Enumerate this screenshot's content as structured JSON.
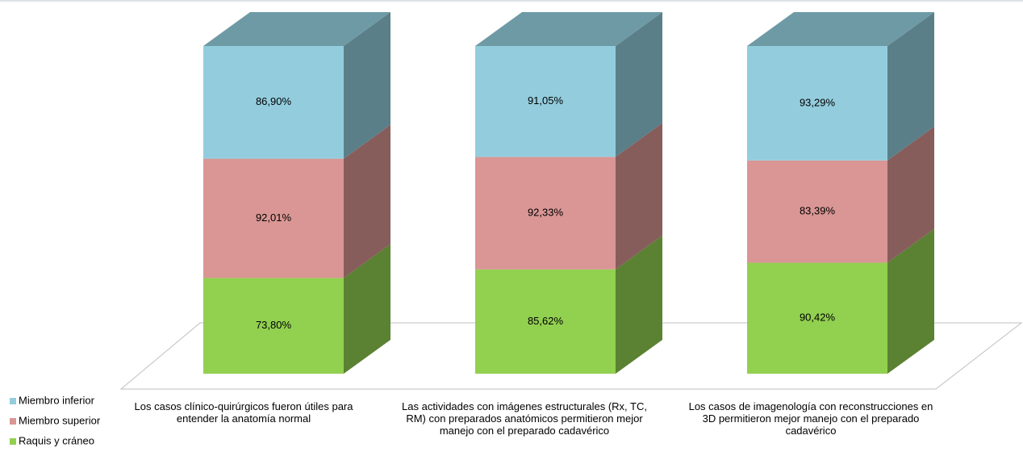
{
  "chart_data": {
    "type": "bar",
    "stacking": "percent",
    "three_d": true,
    "legend": "bottom-left",
    "categories": [
      "Los casos clínico-quirúrgicos fueron útiles para entender  la anatomía normal",
      "Las actividades con imágenes estructurales (Rx, TC, RM) con preparados anatómicos permitieron mejor manejo  con el preparado cadavérico",
      "Los casos de imagenología con reconstrucciones en 3D permitieron mejor manejo con el preparado cadavérico"
    ],
    "series": [
      {
        "name": "Miembro inferior",
        "color": "#93cddd",
        "values": [
          86.9,
          91.05,
          93.29
        ],
        "value_labels": [
          "86,90%",
          "91,05%",
          "93,29%"
        ]
      },
      {
        "name": "Miembro superior",
        "color": "#d99694",
        "values": [
          92.01,
          92.33,
          83.39
        ],
        "value_labels": [
          "92,01%",
          "92,33%",
          "83,39%"
        ]
      },
      {
        "name": "Raquis y cráneo",
        "color": "#92d050",
        "values": [
          73.8,
          85.62,
          90.42
        ],
        "value_labels": [
          "73,80%",
          "85,62%",
          "90,42%"
        ]
      }
    ]
  }
}
